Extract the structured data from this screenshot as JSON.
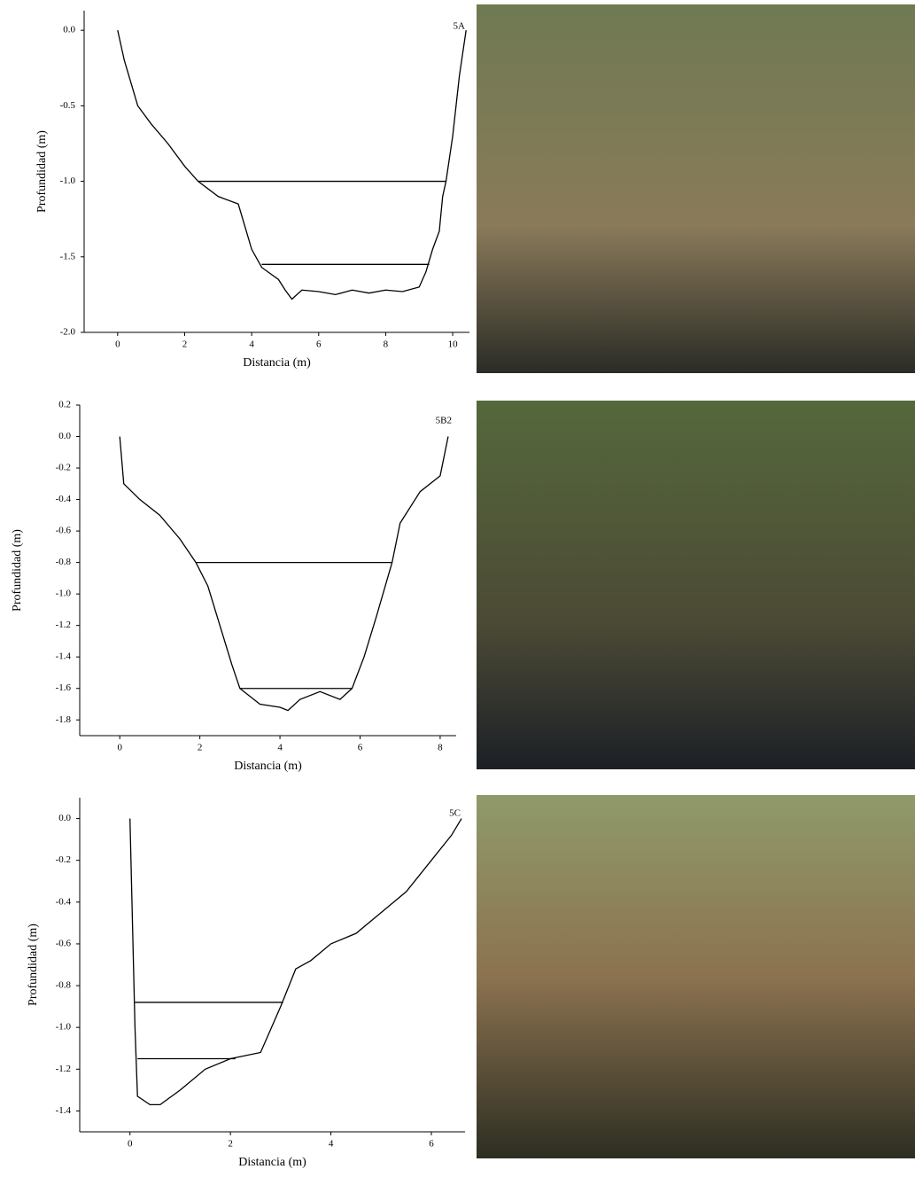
{
  "chart_data": [
    {
      "type": "line",
      "label": "5A",
      "xlabel": "Distancia (m)",
      "ylabel": "Profundidad (m)",
      "xlim": [
        -1,
        10.5
      ],
      "ylim": [
        -2,
        0.13
      ],
      "xticks": [
        0,
        2,
        4,
        6,
        8,
        10
      ],
      "yticks": [
        {
          "value": 0,
          "label": "0.0"
        },
        -0.5,
        {
          "value": -1,
          "label": "-1.0"
        },
        -1.5,
        {
          "value": -2,
          "label": "-2.0"
        }
      ],
      "series": [
        {
          "color": "#000000",
          "x": [
            0,
            0.2,
            0.6,
            1,
            1.5,
            2,
            2.4,
            3,
            3.6,
            3.8,
            4,
            4.3,
            4.8,
            5,
            5.2,
            5.5,
            6,
            6.5,
            7,
            7.5,
            8,
            8.5,
            9,
            9.2,
            9.4,
            9.6,
            9.7,
            9.8,
            10,
            10.2,
            10.4
          ],
          "values": [
            0,
            -0.2,
            -0.5,
            -0.62,
            -0.75,
            -0.9,
            -1.0,
            -1.1,
            -1.15,
            -1.3,
            -1.45,
            -1.57,
            -1.65,
            -1.72,
            -1.78,
            -1.72,
            -1.73,
            -1.75,
            -1.72,
            -1.74,
            -1.72,
            -1.73,
            -1.7,
            -1.6,
            -1.45,
            -1.33,
            -1.1,
            -1.0,
            -0.7,
            -0.3,
            0
          ]
        },
        {
          "color": "#000000",
          "x": [
            2.4,
            9.8
          ],
          "values": [
            -1.0,
            -1.0
          ]
        },
        {
          "color": "#000000",
          "x": [
            4.3,
            9.3
          ],
          "values": [
            -1.55,
            -1.55
          ]
        }
      ]
    },
    {
      "type": "line",
      "label": "5B2",
      "xlabel": "Distancia (m)",
      "ylabel": "Profundidad (m)",
      "xlim": [
        -1,
        8.4
      ],
      "ylim": [
        -1.9,
        0.2
      ],
      "xticks": [
        0,
        2,
        4,
        6,
        8
      ],
      "yticks": [
        0.2,
        {
          "value": 0,
          "label": "0.0"
        },
        -0.2,
        -0.4,
        -0.6,
        -0.8,
        {
          "value": -1,
          "label": "-1.0"
        },
        -1.2,
        -1.4,
        -1.6,
        -1.8
      ],
      "series": [
        {
          "color": "#000000",
          "x": [
            0,
            0.1,
            0.5,
            1,
            1.5,
            1.9,
            2.2,
            2.5,
            2.8,
            3,
            3.5,
            4,
            4.2,
            4.5,
            5,
            5.5,
            5.8,
            6.1,
            6.4,
            6.8,
            7,
            7.5,
            8,
            8.2
          ],
          "values": [
            0,
            -0.3,
            -0.4,
            -0.5,
            -0.65,
            -0.8,
            -0.95,
            -1.2,
            -1.45,
            -1.6,
            -1.7,
            -1.72,
            -1.74,
            -1.67,
            -1.62,
            -1.67,
            -1.6,
            -1.4,
            -1.15,
            -0.8,
            -0.55,
            -0.35,
            -0.25,
            0
          ]
        },
        {
          "color": "#000000",
          "x": [
            1.9,
            6.8
          ],
          "values": [
            -0.8,
            -0.8
          ]
        },
        {
          "color": "#000000",
          "x": [
            3.0,
            5.8
          ],
          "values": [
            -1.6,
            -1.6
          ]
        }
      ]
    },
    {
      "type": "line",
      "label": "5C",
      "xlabel": "Distancia (m)",
      "ylabel": "Profundidad (m)",
      "xlim": [
        -1,
        6.67
      ],
      "ylim": [
        -1.5,
        0.1
      ],
      "xticks": [
        0,
        2,
        4,
        6
      ],
      "yticks": [
        {
          "value": 0,
          "label": "0.0"
        },
        -0.2,
        -0.4,
        -0.6,
        -0.8,
        {
          "value": -1,
          "label": "-1.0"
        },
        -1.2,
        -1.4
      ],
      "series": [
        {
          "color": "#000000",
          "x": [
            0,
            0.05,
            0.1,
            0.15,
            0.4,
            0.6,
            1,
            1.5,
            2,
            2.6,
            3,
            3.3,
            3.6,
            4,
            4.5,
            5,
            5.5,
            6,
            6.4,
            6.6
          ],
          "values": [
            0,
            -0.5,
            -1.0,
            -1.33,
            -1.37,
            -1.37,
            -1.3,
            -1.2,
            -1.15,
            -1.12,
            -0.9,
            -0.72,
            -0.68,
            -0.6,
            -0.55,
            -0.45,
            -0.35,
            -0.2,
            -0.08,
            0
          ]
        },
        {
          "color": "#000000",
          "x": [
            0.1,
            3.05
          ],
          "values": [
            -0.88,
            -0.88
          ]
        },
        {
          "color": "#000000",
          "x": [
            0.15,
            2.1
          ],
          "values": [
            -1.15,
            -1.15
          ]
        }
      ]
    }
  ]
}
